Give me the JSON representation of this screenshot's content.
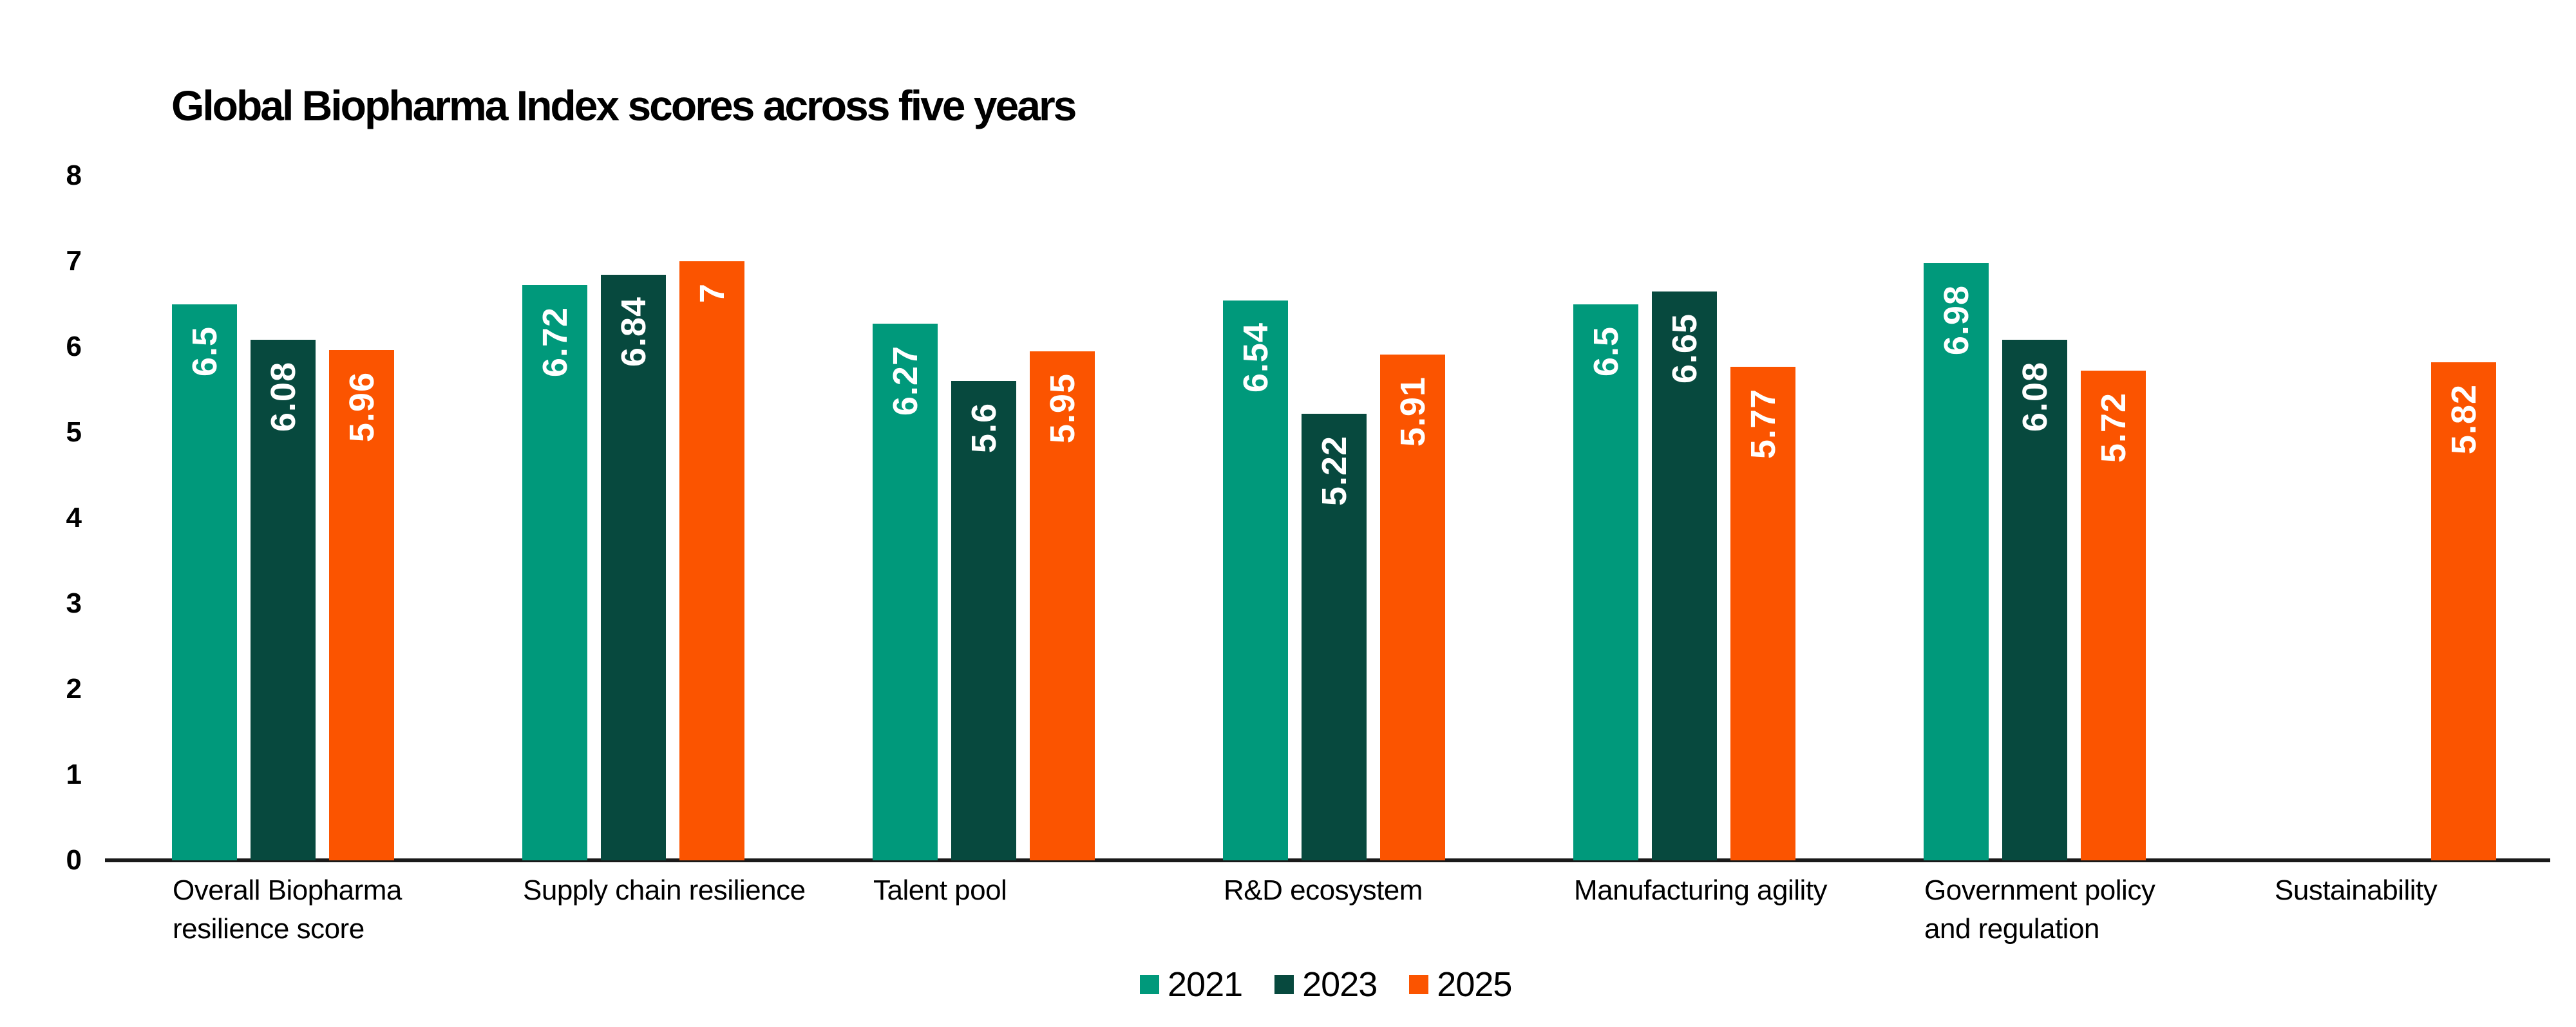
{
  "title": "Global Biopharma Index scores across five years",
  "chart_data": {
    "type": "bar",
    "title": "Global Biopharma Index scores across five years",
    "categories": [
      "Overall Biopharma resilience score",
      "Supply chain resilience",
      "Talent pool",
      "R&D ecosystem",
      "Manufacturing agility",
      "Government policy and regulation",
      "Sustainability"
    ],
    "category_display_labels": [
      "Overall Biopharma\nresilience score",
      "Supply chain resilience",
      "Talent pool",
      "R&D ecosystem",
      "Manufacturing agility",
      "Government policy\nand regulation",
      "Sustainability"
    ],
    "series": [
      {
        "name": "2021",
        "color": "#00997B",
        "values": [
          6.5,
          6.72,
          6.27,
          6.54,
          6.5,
          6.98,
          null
        ]
      },
      {
        "name": "2023",
        "color": "#07493E",
        "values": [
          6.08,
          6.84,
          5.6,
          5.22,
          6.65,
          6.08,
          null
        ]
      },
      {
        "name": "2025",
        "color": "#FB5400",
        "values": [
          5.96,
          7,
          5.95,
          5.91,
          5.77,
          5.72,
          5.82
        ]
      }
    ],
    "value_labels_shown": true,
    "xlabel": "",
    "ylabel": "",
    "ylim": [
      0,
      8
    ],
    "yticks": [
      0,
      1,
      2,
      3,
      4,
      5,
      6,
      7,
      8
    ],
    "grid": false,
    "legend_position": "bottom-center",
    "legend_entries": [
      "2021",
      "2023",
      "2025"
    ],
    "axis_line_color": "#1a1a1a",
    "value_label_color": "#ffffff"
  }
}
